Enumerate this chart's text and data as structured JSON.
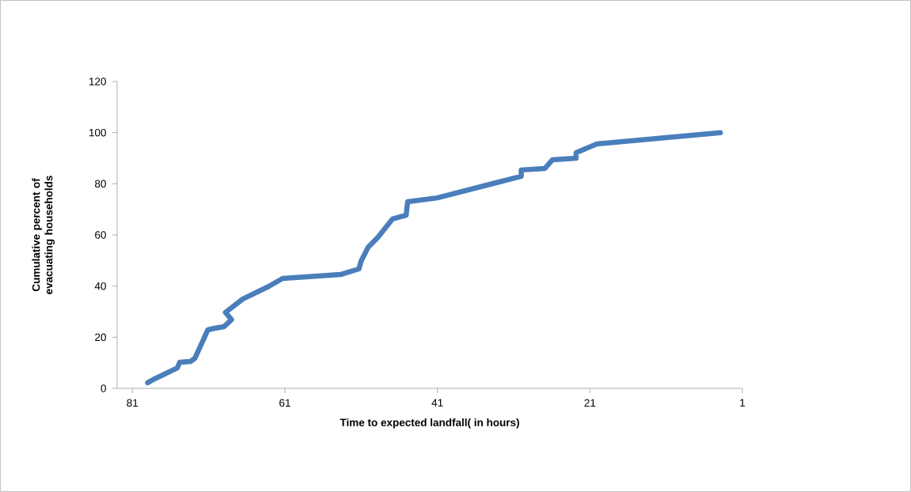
{
  "chart_data": {
    "type": "line",
    "xlabel": "Time to expected landfall( in hours)",
    "ylabel": "Cumulative percent of evacuating households",
    "xlim": [
      83,
      1
    ],
    "xticks": [
      81,
      61,
      41,
      21,
      1
    ],
    "ylim": [
      0,
      120
    ],
    "yticks": [
      0,
      20,
      40,
      60,
      80,
      100,
      120
    ],
    "grid": false,
    "marker": "none",
    "line_style": "solid",
    "series": [
      {
        "color": "#4a7ebb",
        "x": [
          79.0,
          78.3,
          75.1,
          74.8,
          73.4,
          72.8,
          71.1,
          70.2,
          69.0,
          68.0,
          68.8,
          66.5,
          63.1,
          61.3,
          53.7,
          51.3,
          51.0,
          50.1,
          48.8,
          46.9,
          45.1,
          44.9,
          41.0,
          33.7,
          30.0,
          30.0,
          26.9,
          25.9,
          22.8,
          22.8,
          20.1,
          3.9
        ],
        "values": [
          2.2,
          3.4,
          8.0,
          10.2,
          10.5,
          11.8,
          22.9,
          23.5,
          24.1,
          26.9,
          29.7,
          35.0,
          39.9,
          43.0,
          44.5,
          46.7,
          49.8,
          55.1,
          59.1,
          66.2,
          67.7,
          73.0,
          74.5,
          80.1,
          82.9,
          85.4,
          86.0,
          89.4,
          90.0,
          92.2,
          95.6,
          100
        ]
      }
    ]
  }
}
